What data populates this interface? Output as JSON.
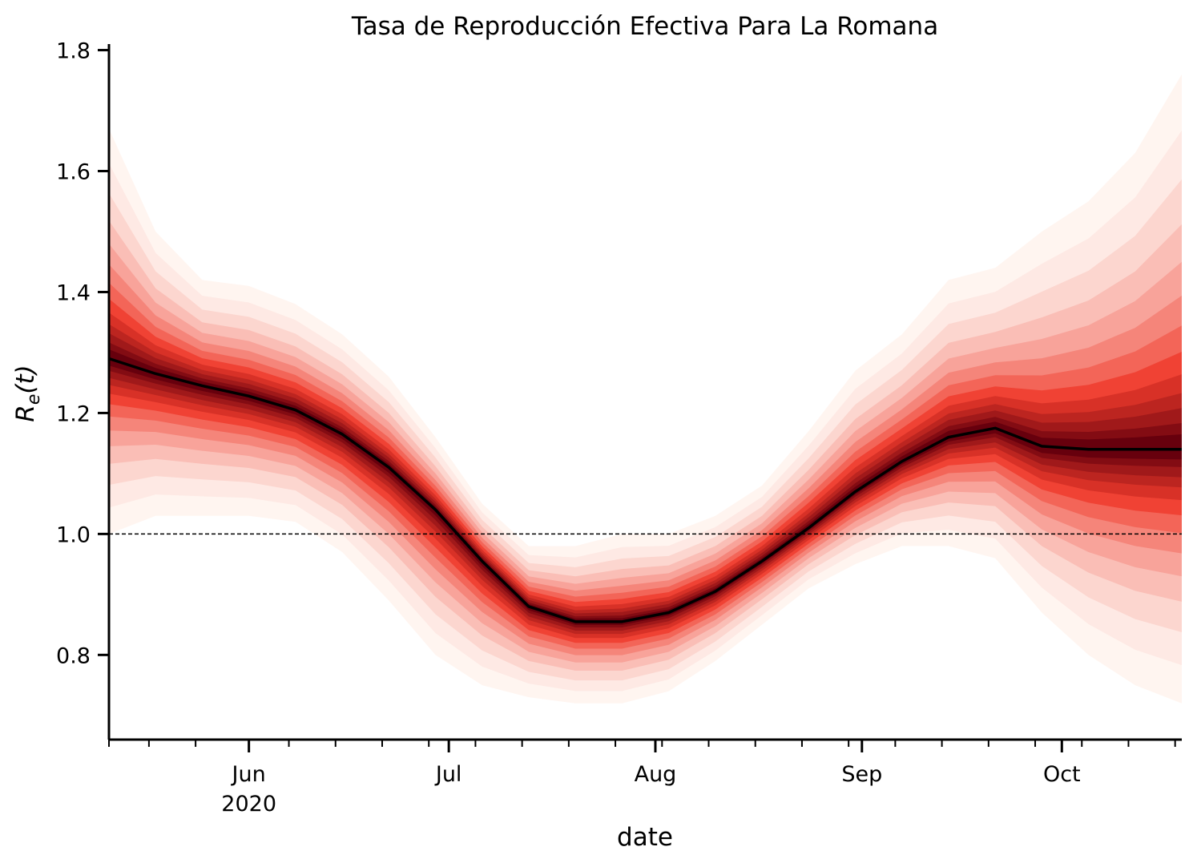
{
  "chart_data": {
    "type": "line",
    "title": "Tasa de Reproducción Efectiva Para La Romana",
    "xlabel": "date",
    "ylabel_main": "R",
    "ylabel_sub": "e",
    "ylabel_arg": "(t)",
    "x_range": [
      "2020-05-11",
      "2020-10-19"
    ],
    "ylim": [
      0.66,
      1.81
    ],
    "y_ticks": [
      0.8,
      1.0,
      1.2,
      1.4,
      1.6,
      1.8
    ],
    "y_tick_labels": [
      "0.8",
      "1.0",
      "1.2",
      "1.4",
      "1.6",
      "1.8"
    ],
    "x_major_ticks": [
      {
        "date": "2020-06-01",
        "label": "Jun",
        "sublabel": "2020"
      },
      {
        "date": "2020-07-01",
        "label": "Jul",
        "sublabel": ""
      },
      {
        "date": "2020-08-01",
        "label": "Aug",
        "sublabel": ""
      },
      {
        "date": "2020-09-01",
        "label": "Sep",
        "sublabel": ""
      },
      {
        "date": "2020-10-01",
        "label": "Oct",
        "sublabel": ""
      }
    ],
    "x_minor_ticks": [
      "2020-05-11",
      "2020-05-17",
      "2020-05-24",
      "2020-06-07",
      "2020-06-14",
      "2020-06-21",
      "2020-06-28",
      "2020-07-05",
      "2020-07-12",
      "2020-07-19",
      "2020-07-26",
      "2020-08-02",
      "2020-08-09",
      "2020-08-16",
      "2020-08-23",
      "2020-08-30",
      "2020-09-06",
      "2020-09-13",
      "2020-09-20",
      "2020-09-27",
      "2020-10-04",
      "2020-10-11",
      "2020-10-18"
    ],
    "reference_line": 1.0,
    "series": [
      {
        "dates": [
          "2020-05-11",
          "2020-05-18",
          "2020-05-25",
          "2020-06-01",
          "2020-06-08",
          "2020-06-15",
          "2020-06-22",
          "2020-06-29",
          "2020-07-06",
          "2020-07-13",
          "2020-07-20",
          "2020-07-27",
          "2020-08-03",
          "2020-08-10",
          "2020-08-17",
          "2020-08-24",
          "2020-08-31",
          "2020-09-07",
          "2020-09-14",
          "2020-09-21",
          "2020-09-28",
          "2020-10-05",
          "2020-10-12",
          "2020-10-19"
        ],
        "median": [
          1.29,
          1.265,
          1.245,
          1.228,
          1.205,
          1.165,
          1.11,
          1.04,
          0.955,
          0.88,
          0.855,
          0.855,
          0.87,
          0.905,
          0.955,
          1.01,
          1.07,
          1.12,
          1.16,
          1.175,
          1.145,
          1.14,
          1.14,
          1.14
        ],
        "lower_90": [
          1.0,
          1.03,
          1.03,
          1.03,
          1.02,
          0.97,
          0.89,
          0.8,
          0.75,
          0.73,
          0.72,
          0.72,
          0.74,
          0.79,
          0.85,
          0.91,
          0.95,
          0.98,
          0.98,
          0.96,
          0.87,
          0.8,
          0.75,
          0.72
        ],
        "upper_90": [
          1.67,
          1.5,
          1.42,
          1.41,
          1.38,
          1.33,
          1.26,
          1.16,
          1.05,
          0.98,
          0.98,
          1.0,
          1.0,
          1.03,
          1.08,
          1.17,
          1.27,
          1.33,
          1.42,
          1.44,
          1.5,
          1.55,
          1.63,
          1.76
        ],
        "color_dark": "#67000d",
        "color_mid": "#ef3b2c",
        "color_light": "#fff5f0",
        "line_color": "#000000"
      }
    ]
  }
}
